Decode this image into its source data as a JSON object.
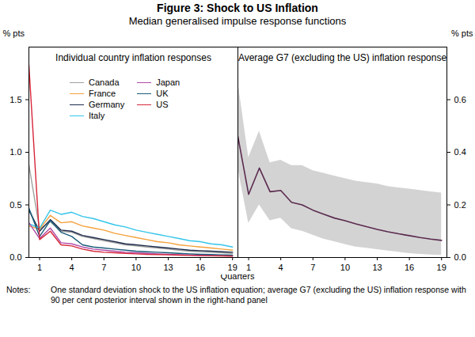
{
  "title": "Figure 3: Shock to US Inflation",
  "subtitle": "Median generalised impulse response functions",
  "xlabel": "Quarters",
  "notes_label": "Notes:",
  "notes": "One standard deviation shock to the US inflation equation; average G7 (excluding the US) inflation response with 90 per cent posterior interval shown in the right-hand panel",
  "chart_data": [
    {
      "type": "line",
      "title": "Individual country inflation responses",
      "ylabel": "% pts",
      "x": [
        0,
        1,
        2,
        3,
        4,
        5,
        6,
        7,
        8,
        9,
        10,
        11,
        12,
        13,
        14,
        15,
        16,
        17,
        18,
        19
      ],
      "xlim": [
        0,
        19.5
      ],
      "xticks": [
        1,
        4,
        7,
        10,
        13,
        16,
        19
      ],
      "ylim": [
        0,
        2
      ],
      "yticks": [
        {
          "value": 0,
          "label": "0.0"
        },
        {
          "value": 0.5,
          "label": "0.5"
        },
        {
          "value": 1,
          "label": "1.0"
        },
        {
          "value": 1.5,
          "label": "1.5"
        }
      ],
      "legend": "top",
      "series": [
        {
          "name": "Canada",
          "color": "#a0a0a0",
          "values": [
            0.88,
            0.27,
            0.34,
            0.25,
            0.24,
            0.2,
            0.18,
            0.16,
            0.14,
            0.12,
            0.11,
            0.1,
            0.09,
            0.08,
            0.07,
            0.06,
            0.055,
            0.05,
            0.045,
            0.04
          ]
        },
        {
          "name": "France",
          "color": "#f5a03a",
          "values": [
            0.3,
            0.27,
            0.4,
            0.33,
            0.34,
            0.3,
            0.28,
            0.26,
            0.23,
            0.21,
            0.19,
            0.17,
            0.15,
            0.14,
            0.12,
            0.11,
            0.1,
            0.09,
            0.08,
            0.07
          ]
        },
        {
          "name": "Germany",
          "color": "#1c2a4a",
          "values": [
            0.45,
            0.25,
            0.36,
            0.26,
            0.25,
            0.21,
            0.19,
            0.17,
            0.15,
            0.13,
            0.12,
            0.11,
            0.1,
            0.09,
            0.08,
            0.07,
            0.065,
            0.06,
            0.055,
            0.05
          ]
        },
        {
          "name": "Italy",
          "color": "#33c5ea",
          "values": [
            0.32,
            0.28,
            0.45,
            0.41,
            0.43,
            0.39,
            0.37,
            0.34,
            0.31,
            0.29,
            0.26,
            0.24,
            0.22,
            0.2,
            0.18,
            0.16,
            0.15,
            0.13,
            0.12,
            0.1
          ]
        },
        {
          "name": "Japan",
          "color": "#b04aa6",
          "values": [
            0.33,
            0.18,
            0.28,
            0.14,
            0.13,
            0.1,
            0.08,
            0.07,
            0.06,
            0.05,
            0.045,
            0.04,
            0.035,
            0.03,
            0.027,
            0.024,
            0.021,
            0.019,
            0.017,
            0.015
          ]
        },
        {
          "name": "UK",
          "color": "#1a5c7a",
          "values": [
            0.47,
            0.2,
            0.35,
            0.24,
            0.2,
            0.12,
            0.1,
            0.09,
            0.08,
            0.07,
            0.06,
            0.055,
            0.05,
            0.045,
            0.04,
            0.035,
            0.03,
            0.028,
            0.025,
            0.022
          ]
        },
        {
          "name": "US",
          "color": "#d6263a",
          "values": [
            1.83,
            0.17,
            0.25,
            0.12,
            0.11,
            0.08,
            0.06,
            0.05,
            0.045,
            0.04,
            0.035,
            0.03,
            0.028,
            0.025,
            0.022,
            0.02,
            0.018,
            0.016,
            0.015,
            0.013
          ]
        }
      ]
    },
    {
      "type": "line",
      "title": "Average G7 (excluding the US) inflation response",
      "ylabel": "% pts",
      "x": [
        0,
        1,
        2,
        3,
        4,
        5,
        6,
        7,
        8,
        9,
        10,
        11,
        12,
        13,
        14,
        15,
        16,
        17,
        18,
        19
      ],
      "xlim": [
        0,
        19.5
      ],
      "xticks": [
        1,
        4,
        7,
        10,
        13,
        16,
        19
      ],
      "ylim": [
        0,
        0.8
      ],
      "yticks": [
        {
          "value": 0,
          "label": "0.0"
        },
        {
          "value": 0.2,
          "label": "0.2"
        },
        {
          "value": 0.4,
          "label": "0.4"
        },
        {
          "value": 0.6,
          "label": "0.6"
        }
      ],
      "interval": {
        "color": "#d3d3d3",
        "lower": [
          0.34,
          0.13,
          0.2,
          0.14,
          0.15,
          0.11,
          0.1,
          0.085,
          0.07,
          0.06,
          0.05,
          0.04,
          0.035,
          0.03,
          0.025,
          0.02,
          0.015,
          0.012,
          0.01,
          0.008
        ],
        "upper": [
          0.67,
          0.38,
          0.48,
          0.36,
          0.37,
          0.35,
          0.35,
          0.33,
          0.32,
          0.31,
          0.3,
          0.29,
          0.285,
          0.28,
          0.27,
          0.265,
          0.26,
          0.255,
          0.25,
          0.245
        ]
      },
      "series": [
        {
          "color": "#5a2a4e",
          "values": [
            0.46,
            0.24,
            0.34,
            0.25,
            0.255,
            0.21,
            0.2,
            0.18,
            0.165,
            0.15,
            0.14,
            0.128,
            0.117,
            0.107,
            0.098,
            0.09,
            0.083,
            0.076,
            0.07,
            0.065
          ]
        }
      ]
    }
  ]
}
